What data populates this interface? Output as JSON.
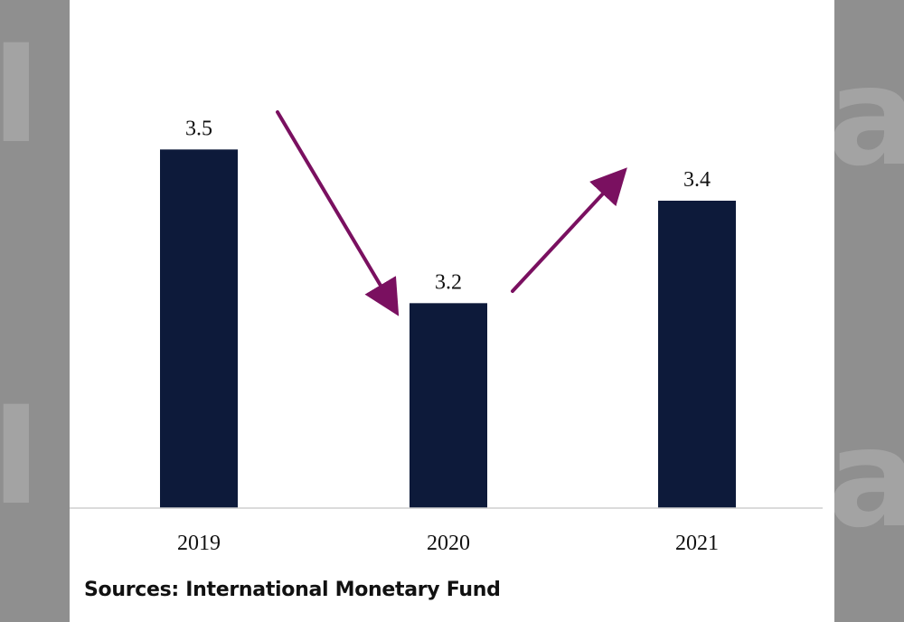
{
  "chart_data": {
    "type": "bar",
    "categories": [
      "2019",
      "2020",
      "2021"
    ],
    "values": [
      3.5,
      3.2,
      3.4
    ],
    "data_labels": [
      "3.5",
      "3.2",
      "3.4"
    ],
    "title": "",
    "xlabel": "",
    "ylabel": "",
    "ylim": [
      2.8,
      3.55
    ],
    "grid": false,
    "legend": "none",
    "bar_color": "#0d1a3a",
    "arrow_color": "#7a1060",
    "annotations": [
      "down-arrow 2019 to 2020",
      "up-arrow 2020 to 2021"
    ]
  },
  "source": "Sources: International Monetary Fund",
  "colors": {
    "background_frame": "#8f8f8f",
    "panel": "#ffffff",
    "watermark": "#a3a3a3"
  },
  "watermark_letters": [
    "I",
    "a",
    "I",
    "a"
  ]
}
